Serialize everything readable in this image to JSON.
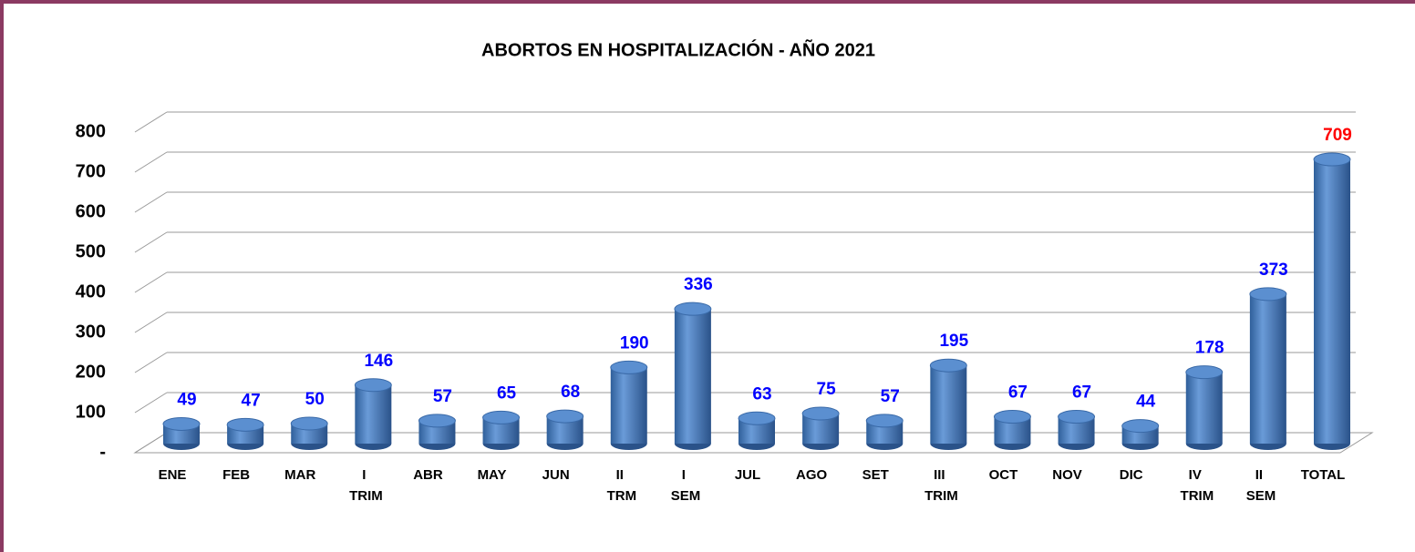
{
  "chart_data": {
    "type": "bar",
    "title": "ABORTOS EN HOSPITALIZACIÓN - AÑO 2021",
    "categories": [
      "ENE",
      "FEB",
      "MAR",
      "I TRIM",
      "ABR",
      "MAY",
      "JUN",
      "II TRM",
      "I SEM",
      "JUL",
      "AGO",
      "SET",
      "III TRIM",
      "OCT",
      "NOV",
      "DIC",
      "IV TRIM",
      "II SEM",
      "TOTAL"
    ],
    "values": [
      49,
      47,
      50,
      146,
      57,
      65,
      68,
      190,
      336,
      63,
      75,
      57,
      195,
      67,
      67,
      44,
      178,
      373,
      709
    ],
    "color": "#4f81bd",
    "value_label_colors": [
      "#0000ff",
      "#0000ff",
      "#0000ff",
      "#0000ff",
      "#0000ff",
      "#0000ff",
      "#0000ff",
      "#0000ff",
      "#0000ff",
      "#0000ff",
      "#0000ff",
      "#0000ff",
      "#0000ff",
      "#0000ff",
      "#0000ff",
      "#0000ff",
      "#0000ff",
      "#0000ff",
      "#ff0000"
    ],
    "ylim": [
      0,
      800
    ],
    "yticks": [
      {
        "value": 0,
        "label": "-"
      },
      100,
      200,
      300,
      400,
      500,
      600,
      700,
      800
    ],
    "grid": true
  }
}
